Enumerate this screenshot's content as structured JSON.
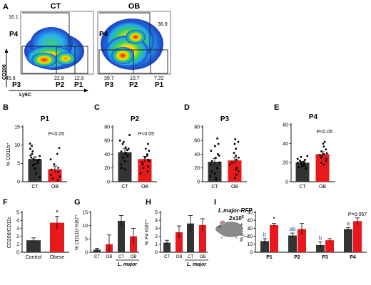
{
  "figure": {
    "panel_labels": [
      "A",
      "B",
      "C",
      "D",
      "E",
      "F",
      "G",
      "H",
      "I"
    ],
    "flow": {
      "plots": [
        {
          "title": "CT",
          "gates": [
            {
              "name": "P4",
              "pct": "16.1"
            },
            {
              "name": "P3",
              "pct": "45.6"
            },
            {
              "name": "P2",
              "pct": "22.8"
            },
            {
              "name": "P1",
              "pct": "12.6"
            }
          ]
        },
        {
          "title": "OB",
          "gates": [
            {
              "name": "P4",
              "pct": "36.9"
            },
            {
              "name": "P3",
              "pct": "39.7"
            },
            {
              "name": "P2",
              "pct": "10.7"
            },
            {
              "name": "P1",
              "pct": "7.22"
            }
          ]
        }
      ],
      "xlabel": "Ly6C",
      "ylabel": "CD206"
    },
    "mouse_label": "L.major-RFP",
    "mouse_dose": "2x10",
    "mouse_dose_exp": "5"
  },
  "colors": {
    "ct": "#333333",
    "ob": "#e8191c",
    "label_blue": "#1f5bab"
  },
  "chart_data": [
    {
      "panel": "B",
      "type": "bar",
      "title": "P1",
      "ylabel": "% CD11b⁺",
      "ylim": [
        0,
        15
      ],
      "yticks": [
        0,
        5,
        10,
        15
      ],
      "categories": [
        "CT",
        "OB"
      ],
      "values": [
        6.2,
        3.4
      ],
      "errors": [
        0.6,
        0.9
      ],
      "points": [
        [
          10.4,
          9.8,
          9.0,
          8.3,
          7.6,
          7.2,
          7.0,
          6.6,
          6.2,
          6.0,
          5.8,
          5.2,
          4.8,
          4.5,
          3.6,
          2.2,
          1.2
        ],
        [
          9.2,
          7.6,
          6.1,
          4.8,
          3.8,
          3.3,
          2.7,
          1.8,
          1.4,
          0.9,
          0.4
        ]
      ],
      "annotation": "P<0.05"
    },
    {
      "panel": "C",
      "type": "bar",
      "title": "P2",
      "ylabel": "",
      "ylim": [
        0,
        80
      ],
      "yticks": [
        0,
        20,
        40,
        60,
        80
      ],
      "categories": [
        "CT",
        "OB"
      ],
      "values": [
        43,
        33
      ],
      "errors": [
        5,
        4
      ],
      "points": [
        [
          68,
          60,
          58,
          55,
          50,
          48,
          46,
          44,
          42,
          38,
          35,
          30,
          25,
          20,
          18
        ],
        [
          55,
          48,
          45,
          40,
          38,
          35,
          32,
          30,
          28,
          25,
          22,
          20,
          15,
          12
        ]
      ],
      "annotation": "P<0.05"
    },
    {
      "panel": "D",
      "type": "bar",
      "title": "P3",
      "ylabel": "",
      "ylim": [
        0,
        80
      ],
      "yticks": [
        0,
        20,
        40,
        60,
        80
      ],
      "categories": [
        "CT",
        "OB"
      ],
      "values": [
        29,
        31
      ],
      "errors": [
        5,
        5
      ],
      "points": [
        [
          63,
          55,
          52,
          45,
          40,
          38,
          35,
          30,
          28,
          25,
          20,
          15,
          12,
          8,
          5,
          3
        ],
        [
          62,
          58,
          55,
          48,
          42,
          38,
          35,
          32,
          28,
          25,
          20,
          18,
          15,
          10,
          5
        ]
      ],
      "annotation": ""
    },
    {
      "panel": "E",
      "type": "bar",
      "title": "P4",
      "ylabel": "",
      "ylim": [
        0,
        60
      ],
      "yticks": [
        0,
        20,
        40,
        60
      ],
      "categories": [
        "CT",
        "OB"
      ],
      "values": [
        20,
        29
      ],
      "errors": [
        1.5,
        2.5
      ],
      "points": [
        [
          27,
          26,
          24,
          23,
          22,
          21,
          20,
          20,
          19,
          18,
          17,
          16,
          15,
          14
        ],
        [
          42,
          40,
          37,
          34,
          32,
          30,
          29,
          28,
          26,
          25,
          24,
          22,
          20,
          18
        ]
      ],
      "annotation": "P<0.05"
    },
    {
      "panel": "F",
      "type": "bar",
      "ylabel": "CD206/CD11c",
      "ylim": [
        0,
        5
      ],
      "yticks": [
        0,
        1,
        2,
        3,
        4,
        5
      ],
      "categories": [
        "Control",
        "Obese"
      ],
      "values": [
        1.5,
        3.7
      ],
      "errors": [
        0.3,
        0.8
      ],
      "annotation": "*"
    },
    {
      "panel": "G",
      "type": "bar",
      "ylabel": "% CD11b⁺Ki67⁺",
      "ylim": [
        0,
        15
      ],
      "yticks": [
        0,
        5,
        10,
        15
      ],
      "categories": [
        "CT",
        "OB",
        "CT",
        "OB"
      ],
      "group_label": "L. major",
      "values": [
        1.0,
        3.0,
        11.8,
        6.0
      ],
      "errors": [
        0.5,
        3.5,
        2.0,
        3.0
      ]
    },
    {
      "panel": "H",
      "type": "bar",
      "ylabel": "% P4 Ki67⁺",
      "ylim": [
        0,
        5
      ],
      "yticks": [
        0,
        1,
        2,
        3,
        4,
        5
      ],
      "categories": [
        "CT",
        "OB",
        "CT",
        "OB"
      ],
      "group_label": "L. major",
      "values": [
        1.2,
        2.5,
        3.6,
        3.4
      ],
      "errors": [
        0.3,
        0.8,
        1.0,
        0.8
      ]
    },
    {
      "panel": "I",
      "type": "bar",
      "ylabel": "% RFP+",
      "ylim": [
        0,
        50
      ],
      "yticks": [
        0,
        10,
        20,
        30,
        40,
        50
      ],
      "categories": [
        "P1",
        "P2",
        "P3",
        "P4"
      ],
      "series": [
        {
          "values": [
            14,
            21,
            9,
            29
          ],
          "errors": [
            3,
            3,
            4,
            2
          ],
          "letters": [
            "b",
            "ab",
            "b",
            "a"
          ]
        },
        {
          "values": [
            34,
            29,
            15,
            39
          ],
          "errors": [
            2,
            7,
            2,
            4
          ],
          "letters": [
            "*",
            "",
            "",
            "P=0.057"
          ]
        }
      ]
    }
  ]
}
